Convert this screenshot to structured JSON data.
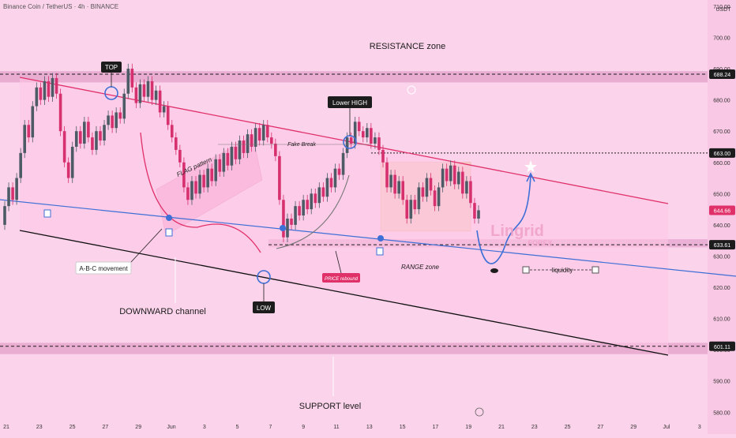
{
  "header": {
    "symbol_title": "Binance Coin / TetherUS · 4h · BINANCE",
    "currency": "USDT"
  },
  "colors": {
    "background": "#fbd3ea",
    "up_candle": "#4c5b66",
    "down_candle": "#d6306e",
    "upper_line": "#e0306a",
    "lower_line": "#111111",
    "trend_line": "#3d6fd6",
    "zone_band": "#e7a8cf",
    "range_zone": "#f7c9c0",
    "label_dark": "#1c1c1c",
    "axis_text": "#333333",
    "price_tag": "#1c1c1c",
    "current_price_tag": "#e0306a"
  },
  "labels": {
    "resistance_zone": "RESISTANCE zone",
    "support_level": "SUPPORT level",
    "top": "TOP",
    "low": "LOW",
    "lower_high": "Lower HIGH",
    "flag_pattern": "FLAG pattern",
    "fake_break": "Fake Break",
    "abc_movement": "A-B-C movement",
    "downward_channel": "DOWNWARD channel",
    "price_rebound": "PRICE rebound",
    "range_zone": "RANGE zone",
    "liquidity": "liquidity",
    "watermark_main": "Lingrid",
    "watermark_sub": "FOREX"
  },
  "chart_data": {
    "type": "candlestick",
    "title": "Binance Coin / TetherUS · 4h · BINANCE",
    "currency": "USDT",
    "ylim": [
      573,
      712
    ],
    "y_ticks": [
      "710.00",
      "700.00",
      "690.00",
      "680.00",
      "670.00",
      "660.00",
      "650.00",
      "640.00",
      "630.00",
      "620.00",
      "610.00",
      "600.00",
      "590.00",
      "580.00"
    ],
    "x_ticks": [
      "21",
      "23",
      "25",
      "27",
      "29",
      "Jun",
      "3",
      "5",
      "7",
      "9",
      "11",
      "13",
      "15",
      "17",
      "19",
      "21",
      "23",
      "25",
      "27",
      "29",
      "Jul",
      "3"
    ],
    "price_tags": [
      {
        "value": 688.24,
        "label": "688.24"
      },
      {
        "value": 663.0,
        "label": "663.00"
      },
      {
        "value": 644.66,
        "label": "644.66",
        "current": true
      },
      {
        "value": 633.61,
        "label": "633.61"
      },
      {
        "value": 601.11,
        "label": "601.11"
      }
    ],
    "candles": [
      [
        1,
        640,
        646
      ],
      [
        2,
        646,
        652
      ],
      [
        3,
        652,
        648
      ],
      [
        4,
        648,
        655
      ],
      [
        5,
        655,
        663
      ],
      [
        6,
        663,
        672
      ],
      [
        7,
        672,
        668
      ],
      [
        8,
        668,
        678
      ],
      [
        9,
        678,
        684
      ],
      [
        10,
        684,
        680
      ],
      [
        11,
        680,
        686
      ],
      [
        12,
        686,
        681
      ],
      [
        13,
        681,
        687
      ],
      [
        14,
        687,
        682
      ],
      [
        15,
        682,
        670
      ],
      [
        16,
        670,
        660
      ],
      [
        17,
        660,
        655
      ],
      [
        18,
        655,
        665
      ],
      [
        19,
        665,
        670
      ],
      [
        20,
        670,
        666
      ],
      [
        21,
        666,
        673
      ],
      [
        22,
        673,
        668
      ],
      [
        23,
        668,
        664
      ],
      [
        24,
        664,
        670
      ],
      [
        25,
        670,
        667
      ],
      [
        26,
        667,
        672
      ],
      [
        27,
        672,
        675
      ],
      [
        28,
        675,
        671
      ],
      [
        29,
        671,
        676
      ],
      [
        30,
        676,
        674
      ],
      [
        31,
        674,
        682
      ],
      [
        32,
        682,
        690
      ],
      [
        33,
        690,
        684
      ],
      [
        34,
        684,
        679
      ],
      [
        35,
        679,
        685
      ],
      [
        36,
        685,
        681
      ],
      [
        37,
        681,
        686
      ],
      [
        38,
        686,
        680
      ],
      [
        39,
        680,
        683
      ],
      [
        40,
        683,
        676
      ],
      [
        41,
        676,
        678
      ],
      [
        42,
        678,
        672
      ],
      [
        43,
        672,
        668
      ],
      [
        44,
        668,
        664
      ],
      [
        45,
        664,
        660
      ],
      [
        46,
        660,
        652
      ],
      [
        47,
        652,
        648
      ],
      [
        48,
        648,
        654
      ],
      [
        49,
        654,
        650
      ],
      [
        50,
        650,
        656
      ],
      [
        51,
        656,
        652
      ],
      [
        52,
        652,
        658
      ],
      [
        53,
        658,
        654
      ],
      [
        54,
        654,
        661
      ],
      [
        55,
        661,
        657
      ],
      [
        56,
        657,
        663
      ],
      [
        57,
        663,
        659
      ],
      [
        58,
        659,
        665
      ],
      [
        59,
        665,
        661
      ],
      [
        60,
        661,
        667
      ],
      [
        61,
        667,
        663
      ],
      [
        62,
        663,
        669
      ],
      [
        63,
        669,
        665
      ],
      [
        64,
        665,
        671
      ],
      [
        65,
        671,
        667
      ],
      [
        66,
        667,
        672
      ],
      [
        67,
        672,
        668
      ],
      [
        68,
        668,
        666
      ],
      [
        69,
        666,
        662
      ],
      [
        70,
        662,
        648
      ],
      [
        71,
        648,
        636
      ],
      [
        72,
        636,
        642
      ],
      [
        73,
        642,
        640
      ],
      [
        74,
        640,
        646
      ],
      [
        75,
        646,
        643
      ],
      [
        76,
        643,
        648
      ],
      [
        77,
        648,
        645
      ],
      [
        78,
        645,
        650
      ],
      [
        79,
        650,
        647
      ],
      [
        80,
        647,
        652
      ],
      [
        81,
        652,
        649
      ],
      [
        82,
        649,
        655
      ],
      [
        83,
        655,
        652
      ],
      [
        84,
        652,
        658
      ],
      [
        85,
        658,
        656
      ],
      [
        86,
        656,
        663
      ],
      [
        87,
        663,
        668
      ],
      [
        88,
        668,
        666
      ],
      [
        89,
        666,
        673
      ],
      [
        90,
        673,
        670
      ],
      [
        91,
        670,
        668
      ],
      [
        92,
        668,
        671
      ],
      [
        93,
        671,
        666
      ],
      [
        94,
        666,
        668
      ],
      [
        95,
        668,
        664
      ],
      [
        96,
        664,
        660
      ],
      [
        97,
        660,
        652
      ],
      [
        98,
        652,
        656
      ],
      [
        99,
        656,
        650
      ],
      [
        100,
        650,
        654
      ],
      [
        101,
        654,
        648
      ],
      [
        102,
        648,
        642
      ],
      [
        103,
        642,
        648
      ],
      [
        104,
        648,
        645
      ],
      [
        105,
        645,
        652
      ],
      [
        106,
        652,
        649
      ],
      [
        107,
        649,
        655
      ],
      [
        108,
        655,
        651
      ],
      [
        109,
        651,
        646
      ],
      [
        110,
        646,
        652
      ],
      [
        111,
        652,
        658
      ],
      [
        112,
        658,
        654
      ],
      [
        113,
        654,
        659
      ],
      [
        114,
        659,
        653
      ],
      [
        115,
        653,
        657
      ],
      [
        116,
        657,
        650
      ],
      [
        117,
        650,
        654
      ],
      [
        118,
        654,
        647
      ],
      [
        119,
        647,
        642
      ],
      [
        120,
        642,
        644.66
      ]
    ]
  }
}
